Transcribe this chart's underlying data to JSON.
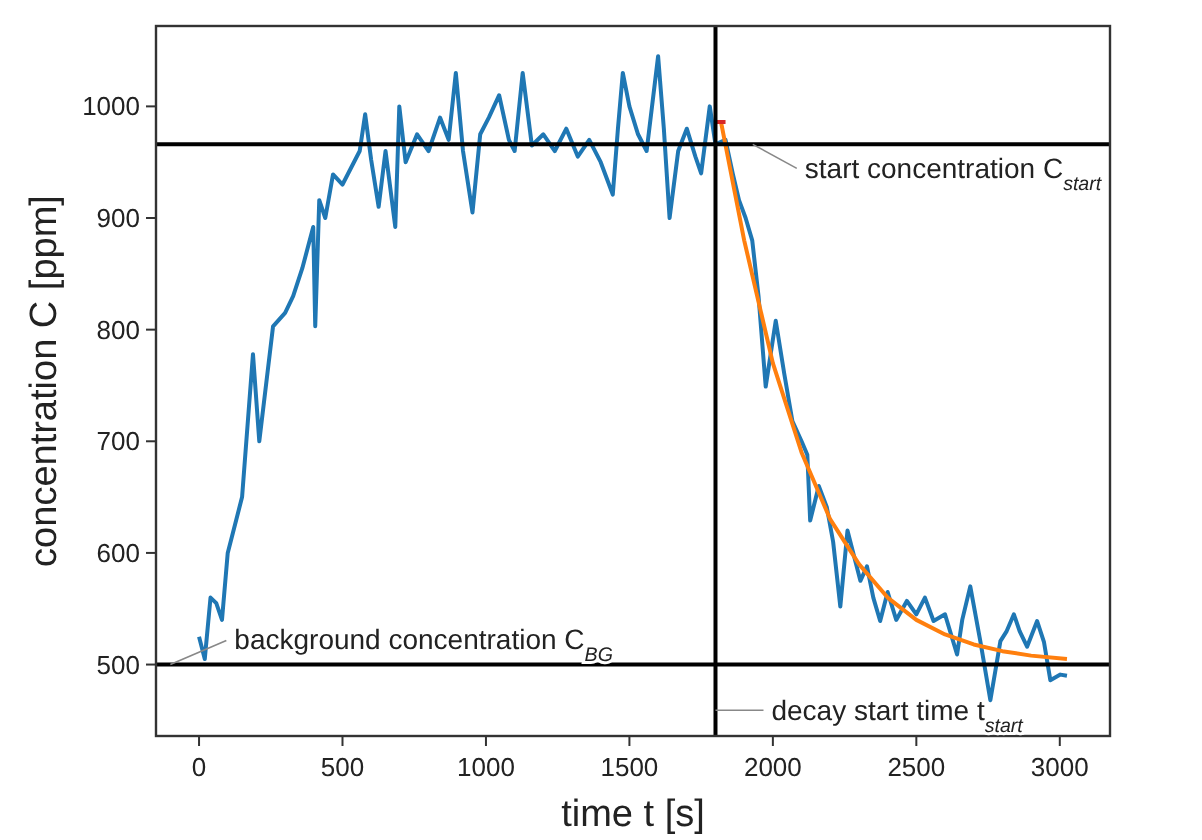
{
  "chart_data": {
    "type": "line",
    "xlabel": "time t [s]",
    "ylabel": "concentration C [ppm]",
    "xlim": [
      -150,
      3175
    ],
    "ylim": [
      436,
      1072
    ],
    "xticks": [
      0,
      500,
      1000,
      1500,
      2000,
      2500,
      3000
    ],
    "yticks": [
      500,
      600,
      700,
      800,
      900,
      1000
    ],
    "grid": false,
    "marker": "none",
    "line_style": "solid",
    "series": [
      {
        "color": "#1f77b4",
        "x": [
          0,
          20,
          40,
          60,
          80,
          100,
          130,
          150,
          188,
          210,
          258,
          300,
          328,
          360,
          398,
          405,
          419,
          440,
          467,
          500,
          530,
          560,
          579,
          600,
          626,
          650,
          684,
          698,
          720,
          760,
          800,
          840,
          870,
          895,
          920,
          953,
          980,
          1010,
          1046,
          1080,
          1100,
          1128,
          1160,
          1200,
          1240,
          1280,
          1320,
          1360,
          1400,
          1442,
          1460,
          1477,
          1500,
          1530,
          1560,
          1600,
          1620,
          1640,
          1670,
          1700,
          1730,
          1750,
          1780,
          1800,
          1835,
          1860,
          1882,
          1905,
          1928,
          1950,
          1975,
          2010,
          2040,
          2068,
          2100,
          2120,
          2130,
          2160,
          2188,
          2210,
          2235,
          2260,
          2281,
          2305,
          2328,
          2350,
          2374,
          2400,
          2430,
          2467,
          2500,
          2530,
          2560,
          2600,
          2642,
          2660,
          2688,
          2723,
          2758,
          2793,
          2815,
          2840,
          2860,
          2886,
          2921,
          2945,
          2967,
          3002,
          3025
        ],
        "values": [
          525,
          505,
          560,
          555,
          540,
          600,
          630,
          650,
          778,
          700,
          803,
          815,
          830,
          855,
          892,
          803,
          916,
          900,
          939,
          930,
          945,
          960,
          993,
          952,
          910,
          960,
          892,
          1000,
          950,
          975,
          960,
          990,
          970,
          1030,
          960,
          905,
          975,
          990,
          1010,
          970,
          960,
          1030,
          965,
          975,
          960,
          980,
          955,
          970,
          950,
          921,
          980,
          1030,
          1000,
          975,
          960,
          1045,
          980,
          900,
          960,
          980,
          955,
          940,
          1000,
          966,
          970,
          940,
          916,
          900,
          880,
          830,
          749,
          808,
          760,
          718,
          700,
          688,
          629,
          660,
          641,
          610,
          552,
          620,
          599,
          575,
          588,
          560,
          539,
          565,
          540,
          557,
          545,
          560,
          539,
          545,
          509,
          540,
          570,
          521,
          468,
          521,
          530,
          545,
          530,
          516,
          539,
          520,
          486,
          491,
          490
        ]
      },
      {
        "color": "#ff7f0e",
        "x": [
          1820,
          1900,
          2000,
          2100,
          2200,
          2300,
          2400,
          2500,
          2600,
          2700,
          2800,
          2900,
          3025
        ],
        "values": [
          985,
          880,
          770,
          690,
          630,
          590,
          560,
          540,
          527,
          518,
          512,
          508,
          505
        ]
      },
      {
        "color": "#d62728",
        "x": [
          1800,
          1835
        ],
        "values": [
          986,
          986
        ]
      }
    ],
    "ref_lines": [
      {
        "axis": "y",
        "value": 500,
        "color": "#000000"
      },
      {
        "axis": "y",
        "value": 966,
        "color": "#000000"
      },
      {
        "axis": "x",
        "value": 1800,
        "color": "#000000"
      }
    ],
    "annotations": [
      {
        "text": "background concentration C$_{BG}$",
        "x": -100,
        "y": 500
      },
      {
        "text": "start concentration C$_{start}$",
        "x": 1930,
        "y": 966
      },
      {
        "text": "decay start time t$_{start}$",
        "x": 1800,
        "y": 459
      }
    ]
  }
}
